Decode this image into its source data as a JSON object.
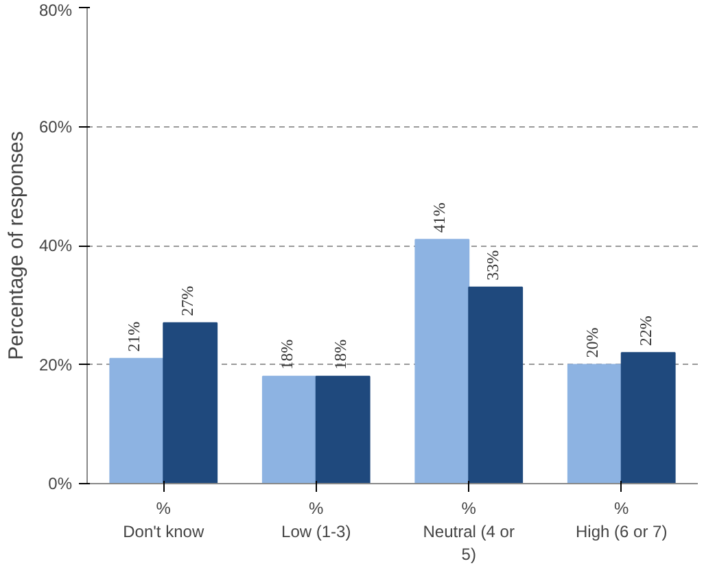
{
  "chart_data": {
    "type": "bar",
    "ylabel": "Percentage of responses",
    "categories": [
      "%\nDon't know",
      "%\nLow (1-3)",
      "%\nNeutral (4 or\n5)",
      "%\nHigh (6 or 7)"
    ],
    "series": [
      {
        "color": "#8db3e2",
        "values": [
          21,
          18,
          41,
          20
        ],
        "value_labels": [
          "21%",
          "18%",
          "41%",
          "20%"
        ]
      },
      {
        "color": "#1f497d",
        "values": [
          27,
          18,
          33,
          22
        ],
        "value_labels": [
          "27%",
          "18%",
          "33%",
          "22%"
        ]
      }
    ],
    "ylim": [
      0,
      80
    ],
    "yticks": [
      {
        "value": 0,
        "label": "0%"
      },
      {
        "value": 20,
        "label": "20%"
      },
      {
        "value": 40,
        "label": "40%"
      },
      {
        "value": 60,
        "label": "60%"
      },
      {
        "value": 80,
        "label": "80%"
      }
    ],
    "grid": "y"
  }
}
